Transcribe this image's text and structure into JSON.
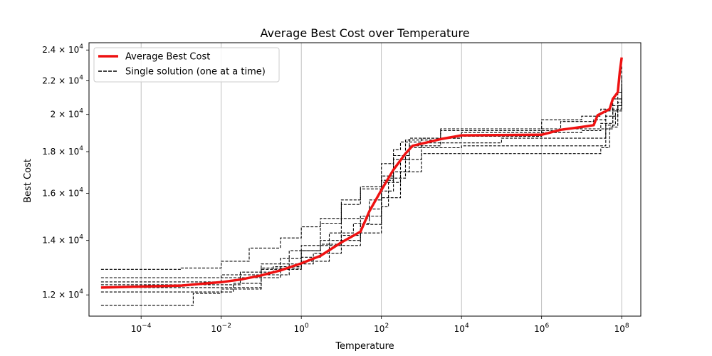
{
  "chart_data": {
    "type": "line",
    "title": "Average Best Cost over Temperature",
    "xlabel": "Temperature",
    "ylabel": "Best Cost",
    "x_scale": "log",
    "y_scale": "log",
    "xlim": [
      5e-06,
      300000000
    ],
    "ylim": [
      11300,
      24500
    ],
    "grid": "vertical",
    "legend_placement": "top-left",
    "x_ticks": [
      {
        "value": 0.0001,
        "base": "10",
        "exp": "−4"
      },
      {
        "value": 0.01,
        "base": "10",
        "exp": "−2"
      },
      {
        "value": 1,
        "base": "10",
        "exp": "0"
      },
      {
        "value": 100,
        "base": "10",
        "exp": "2"
      },
      {
        "value": 10000,
        "base": "10",
        "exp": "4"
      },
      {
        "value": 1000000,
        "base": "10",
        "exp": "6"
      },
      {
        "value": 100000000,
        "base": "10",
        "exp": "8"
      }
    ],
    "y_ticks": [
      {
        "value": 12000,
        "mantissa": "1.2 × 10",
        "exp": "4"
      },
      {
        "value": 14000,
        "mantissa": "1.4 × 10",
        "exp": "4"
      },
      {
        "value": 16000,
        "mantissa": "1.6 × 10",
        "exp": "4"
      },
      {
        "value": 18000,
        "mantissa": "1.8 × 10",
        "exp": "4"
      },
      {
        "value": 20000,
        "mantissa": "2 × 10",
        "exp": "4"
      },
      {
        "value": 22000,
        "mantissa": "2.2 × 10",
        "exp": "4"
      },
      {
        "value": 24000,
        "mantissa": "2.4 × 10",
        "exp": "4"
      }
    ],
    "series": [
      {
        "name": "Average Best Cost",
        "style": "solid",
        "color": "#ee1111",
        "points": [
          [
            1e-05,
            12250
          ],
          [
            0.001,
            12320
          ],
          [
            0.003,
            12380
          ],
          [
            0.01,
            12440
          ],
          [
            0.03,
            12530
          ],
          [
            0.1,
            12680
          ],
          [
            0.3,
            12860
          ],
          [
            1,
            13120
          ],
          [
            3,
            13400
          ],
          [
            10,
            13920
          ],
          [
            30,
            14350
          ],
          [
            50,
            15200
          ],
          [
            100,
            16150
          ],
          [
            200,
            17100
          ],
          [
            400,
            17900
          ],
          [
            600,
            18300
          ],
          [
            3000,
            18650
          ],
          [
            10000,
            18850
          ],
          [
            1000000,
            18880
          ],
          [
            3000000,
            19150
          ],
          [
            10000000,
            19300
          ],
          [
            20000000,
            19400
          ],
          [
            25000000,
            19950
          ],
          [
            50000000,
            20300
          ],
          [
            60000000,
            20900
          ],
          [
            80000000,
            21300
          ],
          [
            90000000,
            22600
          ],
          [
            100000000,
            23500
          ]
        ]
      },
      {
        "name": "Single solution (one at a time)",
        "style": "dashed",
        "color": "#000000",
        "points": [
          [
            1e-05,
            12900
          ],
          [
            0.001,
            12950
          ],
          [
            0.01,
            13200
          ],
          [
            0.05,
            13700
          ],
          [
            0.3,
            14100
          ],
          [
            1,
            14550
          ],
          [
            3,
            14900
          ],
          [
            10,
            15500
          ],
          [
            30,
            16200
          ],
          [
            100,
            17400
          ],
          [
            200,
            18100
          ],
          [
            300,
            18500
          ],
          [
            1000,
            18700
          ],
          [
            10000,
            18800
          ],
          [
            1000000,
            19200
          ],
          [
            20000000,
            19200
          ],
          [
            60000000,
            20900
          ],
          [
            100000000,
            21800
          ]
        ]
      },
      {
        "name": "",
        "style": "dashed",
        "color": "#000000",
        "points": [
          [
            1e-05,
            11650
          ],
          [
            0.001,
            11650
          ],
          [
            0.002,
            12050
          ],
          [
            0.01,
            12200
          ],
          [
            0.1,
            12900
          ],
          [
            1,
            13350
          ],
          [
            3,
            13850
          ],
          [
            10,
            14200
          ],
          [
            30,
            14650
          ],
          [
            100,
            15800
          ],
          [
            300,
            17000
          ],
          [
            1000,
            17900
          ],
          [
            2000000,
            17900
          ],
          [
            20000000,
            17900
          ],
          [
            30000000,
            18200
          ],
          [
            50000000,
            19300
          ],
          [
            80000000,
            20500
          ],
          [
            100000000,
            21600
          ]
        ]
      },
      {
        "name": "",
        "style": "dashed",
        "color": "#000000",
        "points": [
          [
            1e-05,
            12100
          ],
          [
            0.01,
            12100
          ],
          [
            0.02,
            12400
          ],
          [
            0.1,
            12700
          ],
          [
            0.5,
            13100
          ],
          [
            2,
            13500
          ],
          [
            10,
            14000
          ],
          [
            30,
            15000
          ],
          [
            100,
            16100
          ],
          [
            200,
            17000
          ],
          [
            500,
            18300
          ],
          [
            3000,
            19100
          ],
          [
            3000000,
            19600
          ],
          [
            20000000,
            19700
          ],
          [
            40000000,
            20200
          ],
          [
            80000000,
            21300
          ],
          [
            100000000,
            22900
          ]
        ]
      },
      {
        "name": "",
        "style": "dashed",
        "color": "#000000",
        "points": [
          [
            1e-05,
            12600
          ],
          [
            0.05,
            12600
          ],
          [
            0.3,
            13300
          ],
          [
            1,
            13800
          ],
          [
            5,
            14300
          ],
          [
            20,
            14700
          ],
          [
            50,
            15700
          ],
          [
            100,
            16600
          ],
          [
            200,
            17800
          ],
          [
            500,
            18700
          ],
          [
            10000,
            19000
          ],
          [
            10000000,
            19100
          ],
          [
            30000000,
            19500
          ],
          [
            60000000,
            20500
          ],
          [
            100000000,
            21200
          ]
        ]
      },
      {
        "name": "",
        "style": "dashed",
        "color": "#000000",
        "points": [
          [
            1e-05,
            12350
          ],
          [
            0.003,
            12350
          ],
          [
            0.03,
            12800
          ],
          [
            0.2,
            13000
          ],
          [
            1,
            13600
          ],
          [
            3,
            14700
          ],
          [
            10,
            15700
          ],
          [
            30,
            16300
          ],
          [
            100,
            16500
          ],
          [
            300,
            17600
          ],
          [
            1000,
            18450
          ],
          [
            100000,
            18700
          ],
          [
            10000000,
            18700
          ],
          [
            40000000,
            19400
          ],
          [
            70000000,
            20200
          ],
          [
            100000000,
            22300
          ]
        ]
      },
      {
        "name": "",
        "style": "dashed",
        "color": "#000000",
        "points": [
          [
            1e-05,
            12250
          ],
          [
            0.02,
            12250
          ],
          [
            0.1,
            13100
          ],
          [
            0.5,
            13600
          ],
          [
            3,
            14000
          ],
          [
            10,
            14900
          ],
          [
            50,
            15300
          ],
          [
            100,
            16800
          ],
          [
            200,
            17600
          ],
          [
            500,
            18200
          ],
          [
            10000,
            18300
          ],
          [
            3000000,
            18300
          ],
          [
            20000000,
            18300
          ],
          [
            40000000,
            19900
          ],
          [
            80000000,
            20700
          ],
          [
            100000000,
            21000
          ]
        ]
      },
      {
        "name": "",
        "style": "dashed",
        "color": "#000000",
        "points": [
          [
            1e-05,
            12450
          ],
          [
            0.001,
            12450
          ],
          [
            0.01,
            12700
          ],
          [
            0.1,
            12950
          ],
          [
            1,
            13200
          ],
          [
            5,
            13800
          ],
          [
            30,
            14300
          ],
          [
            100,
            15400
          ],
          [
            150,
            16700
          ],
          [
            400,
            18600
          ],
          [
            3000,
            19200
          ],
          [
            1000000,
            19700
          ],
          [
            10000000,
            19900
          ],
          [
            30000000,
            20300
          ],
          [
            100000000,
            21400
          ]
        ]
      }
    ]
  }
}
